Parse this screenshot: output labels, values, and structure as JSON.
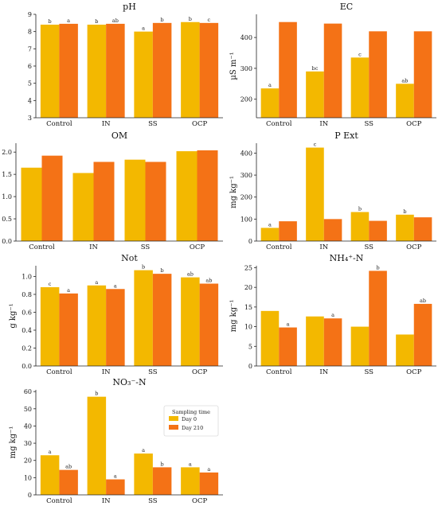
{
  "legend": {
    "title": "Sampling time",
    "items": [
      {
        "label": "Day 0",
        "color": "#f3b800"
      },
      {
        "label": "Day 210",
        "color": "#f47216"
      }
    ]
  },
  "chart_data": [
    {
      "id": "ph",
      "type": "bar",
      "title": "pH",
      "ylabel": "",
      "categories": [
        "Control",
        "IN",
        "SS",
        "OCP"
      ],
      "series": [
        {
          "name": "Day 0",
          "values": [
            8.4,
            8.4,
            8.0,
            8.55
          ],
          "labels": [
            "b",
            "b",
            "a",
            "b"
          ]
        },
        {
          "name": "Day 210",
          "values": [
            8.45,
            8.45,
            8.5,
            8.5
          ],
          "labels": [
            "a",
            "ab",
            "b",
            "c"
          ]
        }
      ],
      "ylim": [
        3,
        9
      ],
      "yticks": [
        3,
        4,
        5,
        6,
        7,
        8,
        9
      ],
      "ytick_labels": [
        "3",
        "4",
        "5",
        "6",
        "7",
        "8",
        "9"
      ]
    },
    {
      "id": "ec",
      "type": "bar",
      "title": "EC",
      "ylabel": "µS m⁻¹",
      "categories": [
        "Control",
        "IN",
        "SS",
        "OCP"
      ],
      "series": [
        {
          "name": "Day 0",
          "values": [
            235,
            290,
            335,
            250
          ],
          "labels": [
            "a",
            "bc",
            "c",
            "ab"
          ]
        },
        {
          "name": "Day 210",
          "values": [
            450,
            445,
            420,
            420
          ],
          "labels": [
            "",
            "",
            "",
            ""
          ]
        }
      ],
      "ylim": [
        140,
        475
      ],
      "yticks": [
        200,
        300,
        400
      ],
      "ytick_labels": [
        "200",
        "300",
        "400"
      ]
    },
    {
      "id": "om",
      "type": "bar",
      "title": "OM",
      "ylabel": "%",
      "categories": [
        "Control",
        "IN",
        "SS",
        "OCP"
      ],
      "series": [
        {
          "name": "Day 0",
          "values": [
            1.65,
            1.53,
            1.83,
            2.02
          ],
          "labels": [
            "",
            "",
            "",
            ""
          ]
        },
        {
          "name": "Day 210",
          "values": [
            1.92,
            1.78,
            1.78,
            2.04
          ],
          "labels": [
            "",
            "",
            "",
            ""
          ]
        }
      ],
      "ylim": [
        0,
        2.2
      ],
      "yticks": [
        0,
        0.5,
        1.0,
        1.5,
        2.0
      ],
      "ytick_labels": [
        "0.0",
        "0.5",
        "1.0",
        "1.5",
        "2.0"
      ]
    },
    {
      "id": "pext",
      "type": "bar",
      "title": "P Ext",
      "ylabel": "mg kg⁻¹",
      "categories": [
        "Control",
        "IN",
        "SS",
        "OCP"
      ],
      "series": [
        {
          "name": "Day 0",
          "values": [
            60,
            425,
            132,
            120
          ],
          "labels": [
            "a",
            "c",
            "b",
            "b"
          ]
        },
        {
          "name": "Day 210",
          "values": [
            90,
            100,
            92,
            108
          ],
          "labels": [
            "",
            "",
            "",
            ""
          ]
        }
      ],
      "ylim": [
        0,
        445
      ],
      "yticks": [
        0,
        100,
        200,
        300,
        400
      ],
      "ytick_labels": [
        "0",
        "100",
        "200",
        "300",
        "400"
      ]
    },
    {
      "id": "not",
      "type": "bar",
      "title": "Not",
      "ylabel": "g kg⁻¹",
      "categories": [
        "Control",
        "IN",
        "SS",
        "OCP"
      ],
      "series": [
        {
          "name": "Day 0",
          "values": [
            0.88,
            0.9,
            1.07,
            0.99
          ],
          "labels": [
            "c",
            "a",
            "b",
            "ab"
          ]
        },
        {
          "name": "Day 210",
          "values": [
            0.81,
            0.86,
            1.03,
            0.92
          ],
          "labels": [
            "a",
            "a",
            "b",
            "ab"
          ]
        }
      ],
      "ylim": [
        0,
        1.12
      ],
      "yticks": [
        0,
        0.2,
        0.4,
        0.6,
        0.8,
        1.0
      ],
      "ytick_labels": [
        "0.0",
        "0.2",
        "0.4",
        "0.6",
        "0.8",
        "1.0"
      ]
    },
    {
      "id": "nh4",
      "type": "bar",
      "title": "NH₄⁺-N",
      "ylabel": "mg kg⁻¹",
      "categories": [
        "Control",
        "IN",
        "SS",
        "OCP"
      ],
      "series": [
        {
          "name": "Day 0",
          "values": [
            14,
            12.6,
            10,
            8
          ],
          "labels": [
            "",
            "",
            "",
            ""
          ]
        },
        {
          "name": "Day 210",
          "values": [
            9.8,
            12.1,
            24.2,
            15.8
          ],
          "labels": [
            "a",
            "a",
            "b",
            "ab"
          ]
        }
      ],
      "ylim": [
        0,
        25.5
      ],
      "yticks": [
        0,
        5,
        10,
        15,
        20,
        25
      ],
      "ytick_labels": [
        "0",
        "5",
        "10",
        "15",
        "20",
        "25"
      ]
    },
    {
      "id": "no3",
      "type": "bar",
      "title": "NO₃⁻-N",
      "ylabel": "mg kg⁻¹",
      "categories": [
        "Control",
        "IN",
        "SS",
        "OCP"
      ],
      "series": [
        {
          "name": "Day 0",
          "values": [
            23,
            57,
            24,
            16
          ],
          "labels": [
            "a",
            "b",
            "a",
            "a"
          ]
        },
        {
          "name": "Day 210",
          "values": [
            14.5,
            9,
            16,
            13
          ],
          "labels": [
            "ab",
            "a",
            "b",
            "a"
          ]
        }
      ],
      "ylim": [
        0,
        61
      ],
      "yticks": [
        0,
        10,
        20,
        30,
        40,
        50,
        60
      ],
      "ytick_labels": [
        "0",
        "10",
        "20",
        "30",
        "40",
        "50",
        "60"
      ]
    }
  ]
}
